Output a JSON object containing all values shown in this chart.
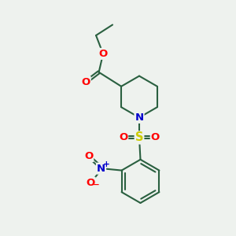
{
  "background_color": "#eef2ee",
  "bond_color": "#2a6040",
  "bond_width": 1.5,
  "atom_colors": {
    "O": "#ff0000",
    "N": "#0000cc",
    "S": "#cccc00",
    "C": "#2a6040"
  },
  "font_size_atom": 8.5,
  "fig_width": 3.0,
  "fig_height": 3.0
}
